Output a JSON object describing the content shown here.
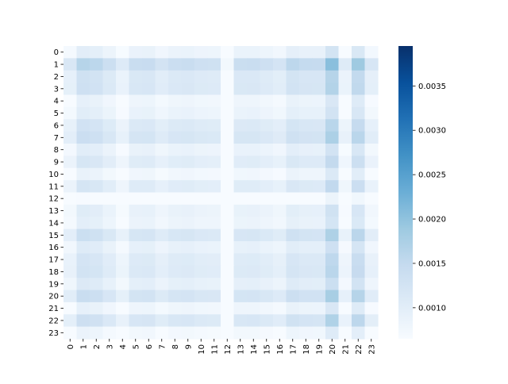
{
  "chart_data": {
    "type": "heatmap",
    "title": "",
    "xlabel": "",
    "ylabel": "",
    "x_ticks": [
      "0",
      "1",
      "2",
      "3",
      "4",
      "5",
      "6",
      "7",
      "8",
      "9",
      "10",
      "11",
      "12",
      "13",
      "14",
      "15",
      "16",
      "17",
      "18",
      "19",
      "20",
      "21",
      "22",
      "23"
    ],
    "y_ticks": [
      "0",
      "1",
      "2",
      "3",
      "4",
      "5",
      "6",
      "7",
      "8",
      "9",
      "10",
      "11",
      "12",
      "13",
      "14",
      "15",
      "16",
      "17",
      "18",
      "19",
      "20",
      "21",
      "22",
      "23"
    ],
    "color_scale": {
      "cmap": "Blues",
      "vmin": 0.00065,
      "vmax": 0.00395,
      "low_color": "#f7fbff",
      "high_color": "#08306b"
    },
    "colorbar": {
      "ticks": [
        "0.0010",
        "0.0015",
        "0.0020",
        "0.0025",
        "0.0030",
        "0.0035"
      ],
      "tick_values": [
        0.001,
        0.0015,
        0.002,
        0.0025,
        0.003,
        0.0035
      ]
    },
    "row_factors": [
      1.05,
      1.72,
      1.38,
      1.4,
      0.97,
      1.06,
      1.35,
      1.46,
      1.07,
      1.26,
      0.93,
      1.27,
      0.7,
      1.09,
      1.03,
      1.45,
      1.12,
      1.3,
      1.34,
      1.16,
      1.5,
      0.97,
      1.43,
      0.89
    ],
    "col_factors": [
      1.1,
      1.56,
      1.5,
      1.3,
      1.03,
      1.36,
      1.38,
      1.2,
      1.33,
      1.35,
      1.28,
      1.26,
      0.7,
      1.34,
      1.35,
      1.27,
      1.18,
      1.49,
      1.41,
      1.4,
      1.95,
      1.01,
      1.79,
      1.13
    ],
    "value_scale": 0.00111,
    "values_note_unit": "value"
  }
}
